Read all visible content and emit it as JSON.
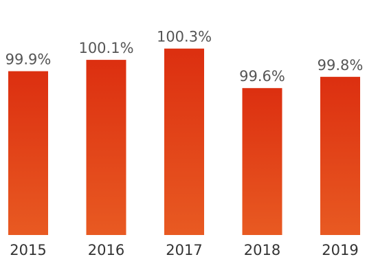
{
  "chart_data": {
    "type": "bar",
    "categories": [
      "2015",
      "2016",
      "2017",
      "2018",
      "2019"
    ],
    "values": [
      99.9,
      100.1,
      100.3,
      99.6,
      99.8
    ],
    "value_labels": [
      "99.9%",
      "100.1%",
      "100.3%",
      "99.6%",
      "99.8%"
    ],
    "title": "",
    "xlabel": "",
    "ylabel": "",
    "ylim": [
      97.0,
      100.6
    ],
    "grid": false,
    "legend": "none",
    "colors": {
      "bar_top": "#dc2f10",
      "bar_bottom": "#e85a22"
    }
  }
}
